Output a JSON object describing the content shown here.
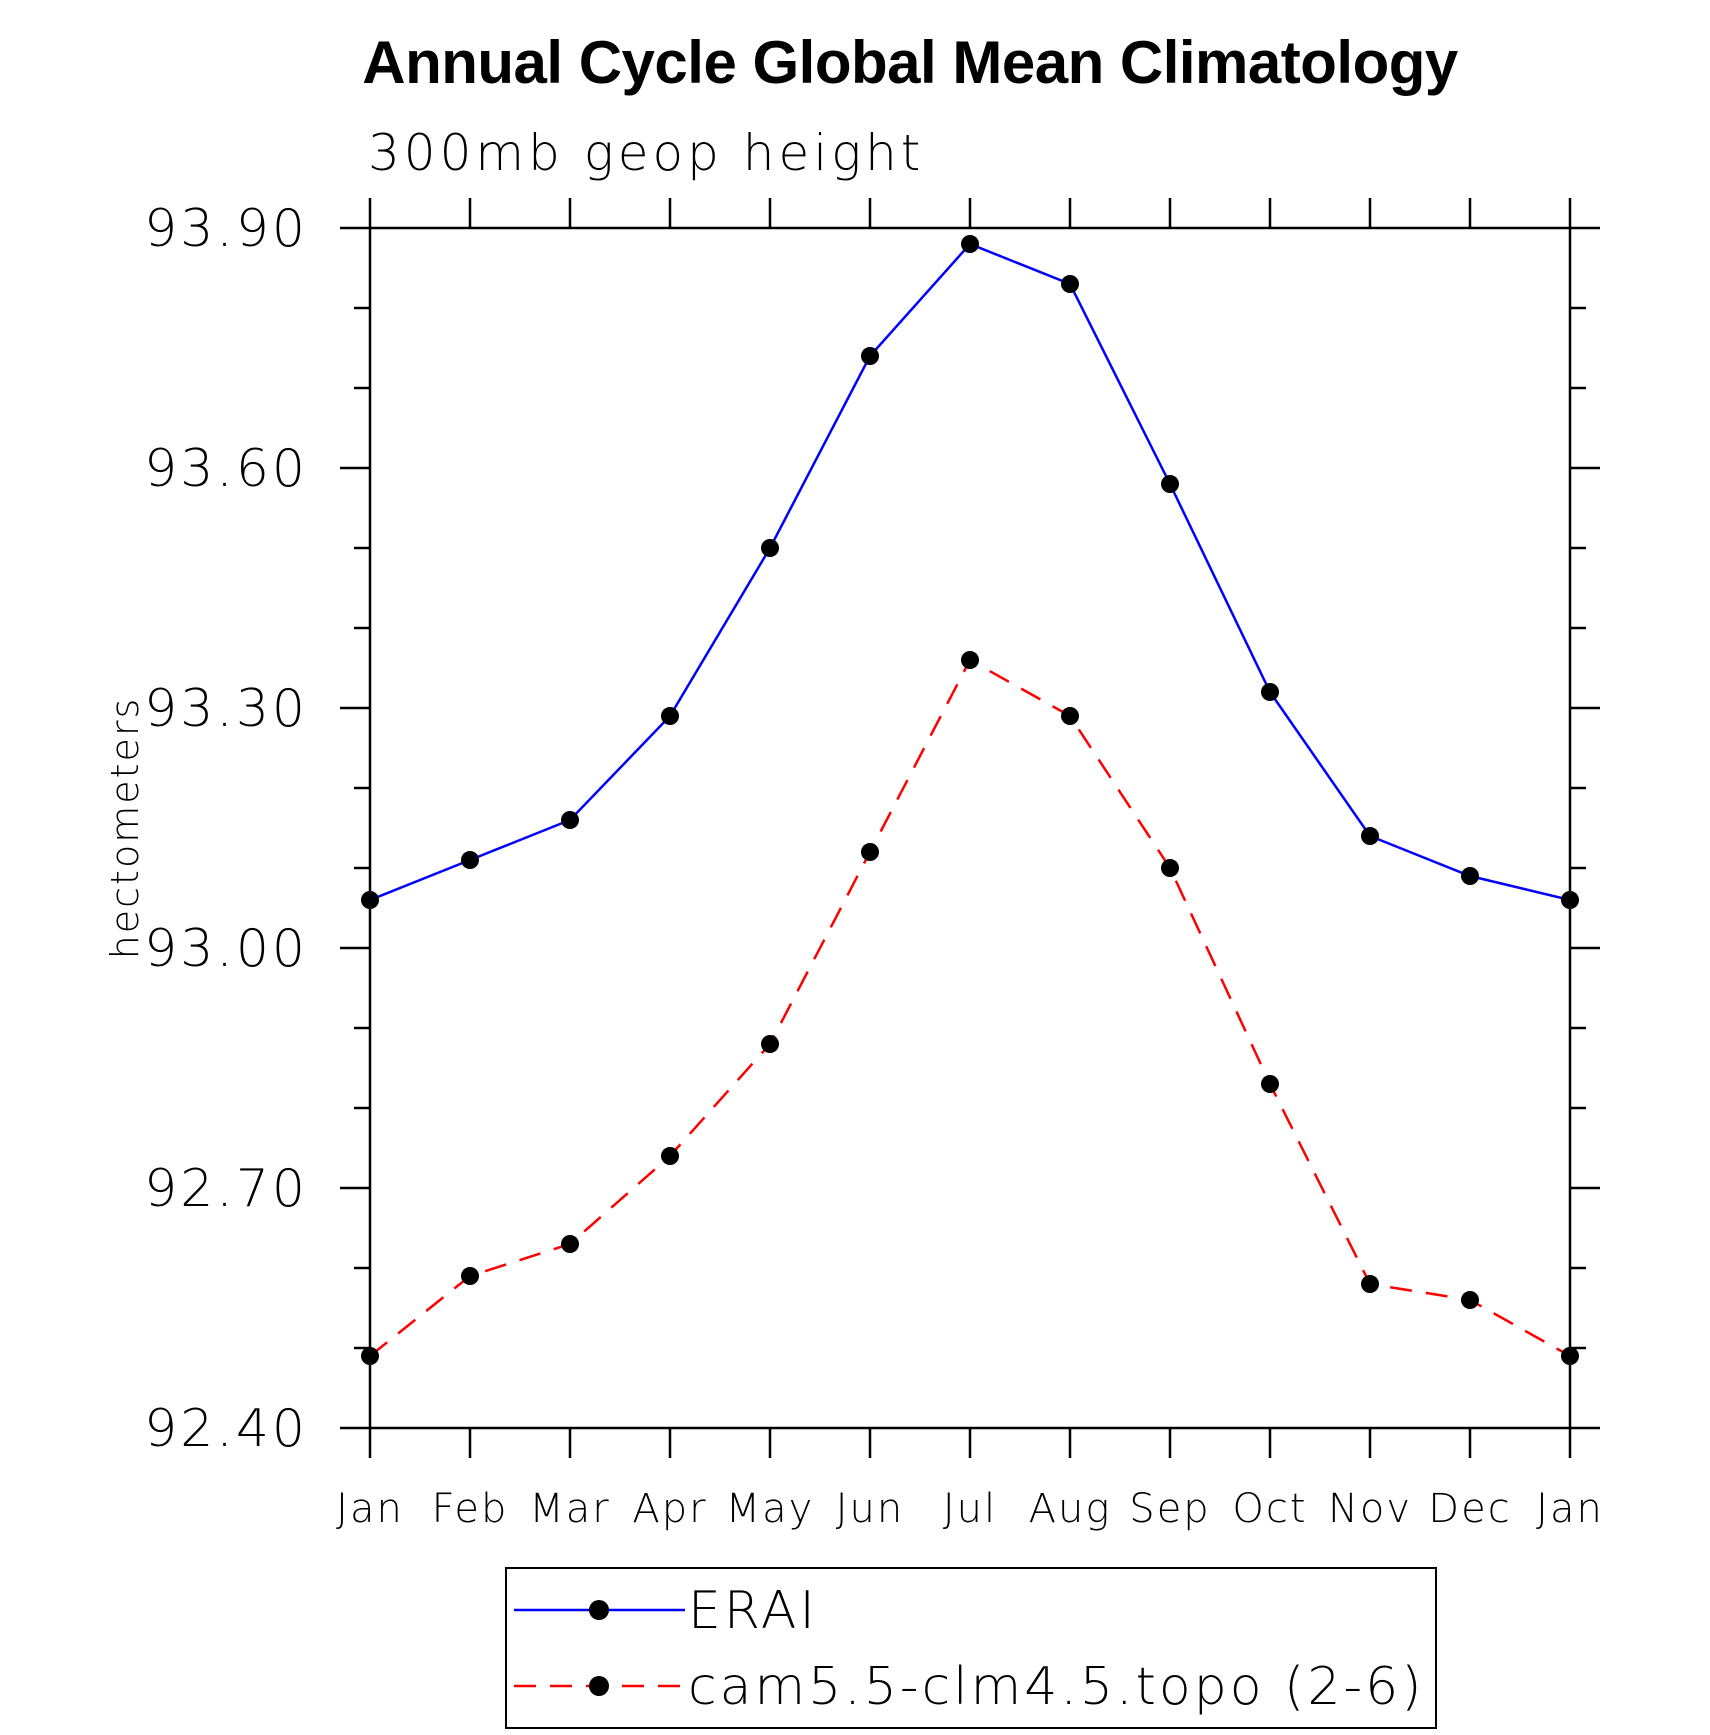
{
  "chart_data": {
    "type": "line",
    "title": "Annual Cycle Global Mean Climatology",
    "subtitle": "300mb geop height",
    "xlabel": "",
    "ylabel": "hectometers",
    "categories": [
      "Jan",
      "Feb",
      "Mar",
      "Apr",
      "May",
      "Jun",
      "Jul",
      "Aug",
      "Sep",
      "Oct",
      "Nov",
      "Dec",
      "Jan"
    ],
    "ylim": [
      92.4,
      93.9
    ],
    "yticks": [
      "93.90",
      "93.60",
      "93.30",
      "93.00",
      "92.70",
      "92.40"
    ],
    "grid": false,
    "legend_position": "bottom",
    "series": [
      {
        "name": "ERAI",
        "color": "#0000ff",
        "line_style": "solid",
        "marker": "filled-circle",
        "values": [
          93.06,
          93.11,
          93.16,
          93.29,
          93.5,
          93.74,
          93.88,
          93.83,
          93.58,
          93.32,
          93.14,
          93.09,
          93.06
        ]
      },
      {
        "name": "cam5.5-clm4.5.topo (2-6)",
        "color": "#ff0000",
        "line_style": "dashed",
        "marker": "filled-circle",
        "values": [
          92.49,
          92.59,
          92.63,
          92.74,
          92.88,
          93.12,
          93.36,
          93.29,
          93.1,
          92.83,
          92.58,
          92.56,
          92.49
        ]
      }
    ]
  }
}
